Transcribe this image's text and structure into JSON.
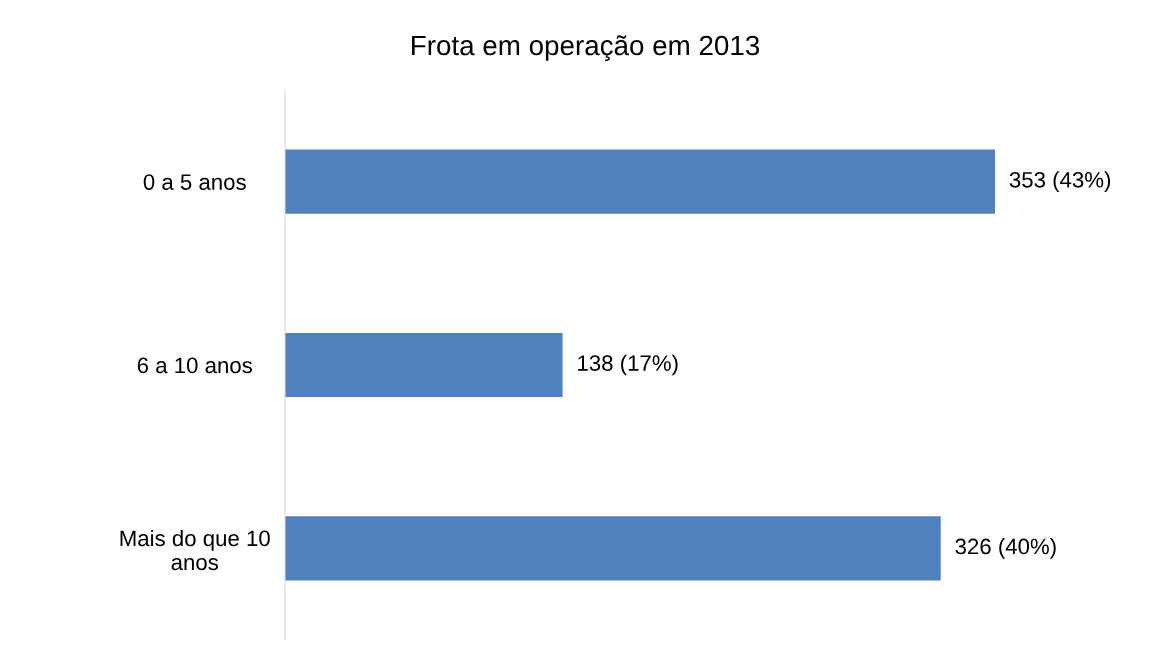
{
  "chart_data": {
    "type": "bar",
    "orientation": "horizontal",
    "title": "Frota em operação em 2013",
    "categories": [
      "0 a 5 anos",
      "6 a 10 anos",
      "Mais do que 10\nanos"
    ],
    "values": [
      353,
      138,
      326
    ],
    "value_labels": [
      "353 (43%)",
      "138 (17%)",
      "326 (40%)"
    ],
    "color": "#4f81bd",
    "grid": false,
    "legend": false
  }
}
